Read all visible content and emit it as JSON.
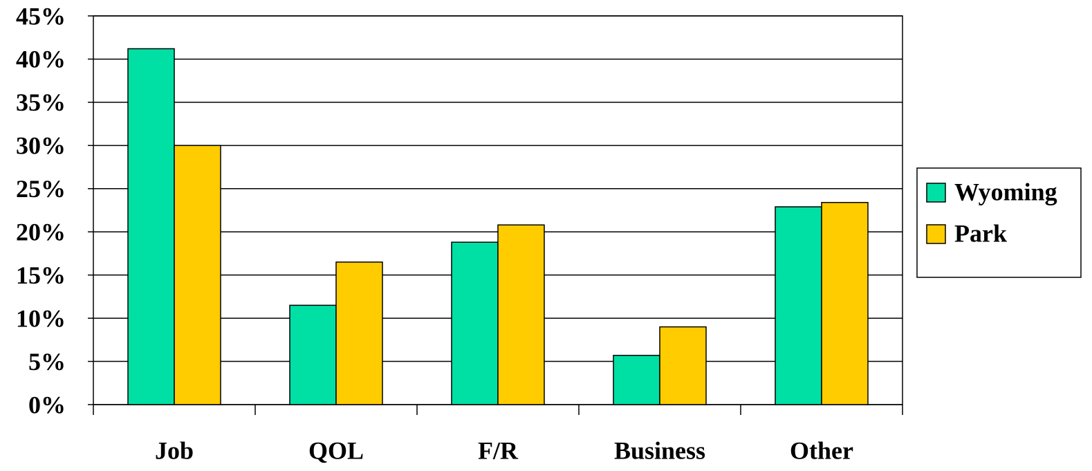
{
  "chart_data": {
    "type": "bar",
    "categories": [
      "Job",
      "QOL",
      "F/R",
      "Business",
      "Other"
    ],
    "series": [
      {
        "name": "Wyoming",
        "color": "#00e0a4",
        "values": [
          41.2,
          11.5,
          18.8,
          5.7,
          22.9
        ]
      },
      {
        "name": "Park",
        "color": "#ffcc00",
        "values": [
          30.0,
          16.5,
          20.8,
          9.0,
          23.4
        ]
      }
    ],
    "ylim": [
      0,
      45
    ],
    "yticks": [
      {
        "value": 0,
        "label": "0%"
      },
      {
        "value": 5,
        "label": "5%"
      },
      {
        "value": 10,
        "label": "10%"
      },
      {
        "value": 15,
        "label": "15%"
      },
      {
        "value": 20,
        "label": "20%"
      },
      {
        "value": 25,
        "label": "25%"
      },
      {
        "value": 30,
        "label": "30%"
      },
      {
        "value": 35,
        "label": "35%"
      },
      {
        "value": 40,
        "label": "40%"
      },
      {
        "value": 45,
        "label": "45%"
      }
    ],
    "grid": true,
    "legend": "right"
  }
}
